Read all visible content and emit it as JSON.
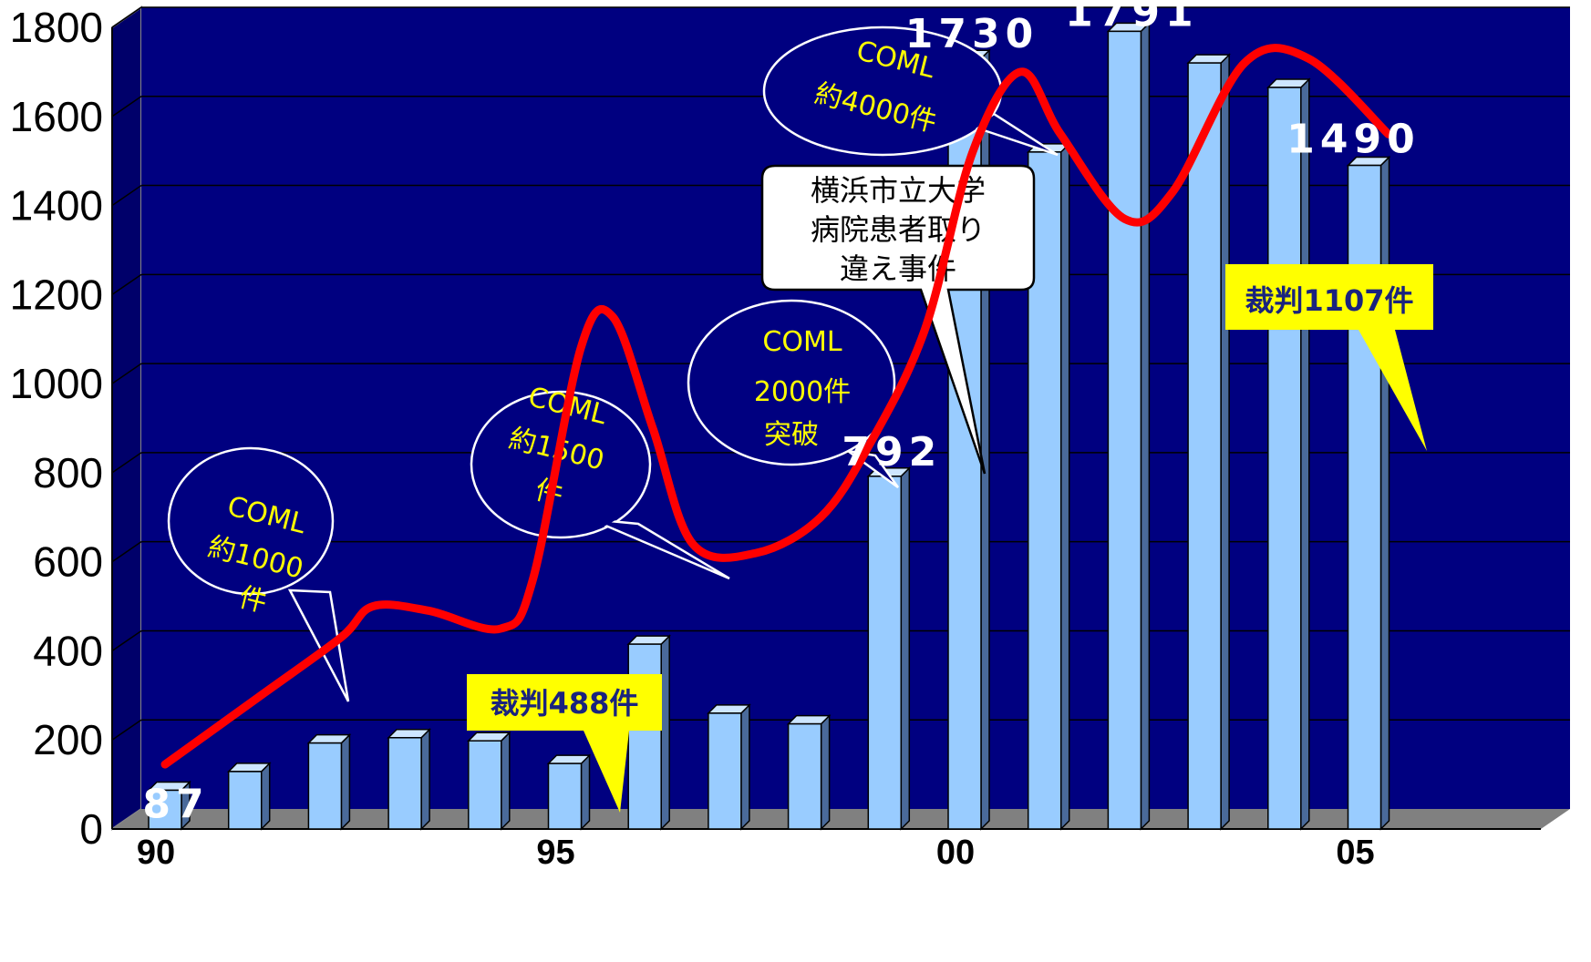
{
  "colors": {
    "plot_background": "#000080",
    "floor": "#808080",
    "bar_front": "#99ccff",
    "bar_side": "#4a6a9a",
    "bar_top": "#cde6ff",
    "trend_line": "#ff0000",
    "yellow_box": "#ffff00",
    "callout_text": "#ffff00"
  },
  "chart_data": {
    "type": "bar",
    "title": "",
    "xlabel": "",
    "ylabel": "",
    "ylim": [
      0,
      1800
    ],
    "yticks": [
      0,
      200,
      400,
      600,
      800,
      1000,
      1200,
      1400,
      1600,
      1800
    ],
    "ytick_labels": [
      "0",
      "200",
      "400",
      "600",
      "800",
      "1000",
      "1200",
      "1400",
      "1600",
      "1800"
    ],
    "categories": [
      "1990",
      "1991",
      "1992",
      "1993",
      "1994",
      "1995",
      "1996",
      "1997",
      "1998",
      "1999",
      "2000",
      "2001",
      "2002",
      "2003",
      "2004",
      "2005"
    ],
    "xtick_labels": [
      "90",
      "95",
      "00",
      "05"
    ],
    "xtick_categories": [
      "1990",
      "1995",
      "2000",
      "2005"
    ],
    "values": [
      87,
      129,
      193,
      205,
      198,
      147,
      415,
      260,
      236,
      792,
      1730,
      1520,
      1791,
      1720,
      1665,
      1490
    ],
    "data_labels": [
      {
        "category": "1990",
        "text": "87"
      },
      {
        "category": "1999",
        "text": "792"
      },
      {
        "category": "2000",
        "text": "1730"
      },
      {
        "category": "2002",
        "text": "1791"
      },
      {
        "category": "2005",
        "text": "1490"
      }
    ],
    "trend_line": {
      "x": [
        1990,
        1991.2,
        1992.2,
        1992.6,
        1993.3,
        1994.2,
        1994.6,
        1995.2,
        1995.6,
        1996.1,
        1996.6,
        1997.4,
        1998.2,
        1998.8,
        1999.5,
        2000.1,
        2000.7,
        2001.2,
        2002.0,
        2002.6,
        2003.5,
        2004.3,
        2005.3
      ],
      "y": [
        145,
        300,
        430,
        500,
        490,
        450,
        560,
        1080,
        1150,
        900,
        640,
        620,
        700,
        860,
        1120,
        1520,
        1700,
        1560,
        1370,
        1430,
        1720,
        1730,
        1560
      ]
    },
    "annotations": [
      {
        "type": "callout",
        "lines": [
          "COML",
          "約1000",
          "件"
        ]
      },
      {
        "type": "callout",
        "lines": [
          "COML",
          "約1500",
          "件"
        ]
      },
      {
        "type": "callout",
        "lines": [
          "COML",
          "2000件",
          "突破"
        ]
      },
      {
        "type": "callout",
        "lines": [
          "COML",
          "約4000件"
        ]
      },
      {
        "type": "callout_white",
        "lines": [
          "横浜市立大学",
          "病院患者取り",
          "違え事件"
        ]
      },
      {
        "type": "box",
        "text": "裁判488件"
      },
      {
        "type": "box",
        "text": "裁判1107件"
      }
    ]
  }
}
